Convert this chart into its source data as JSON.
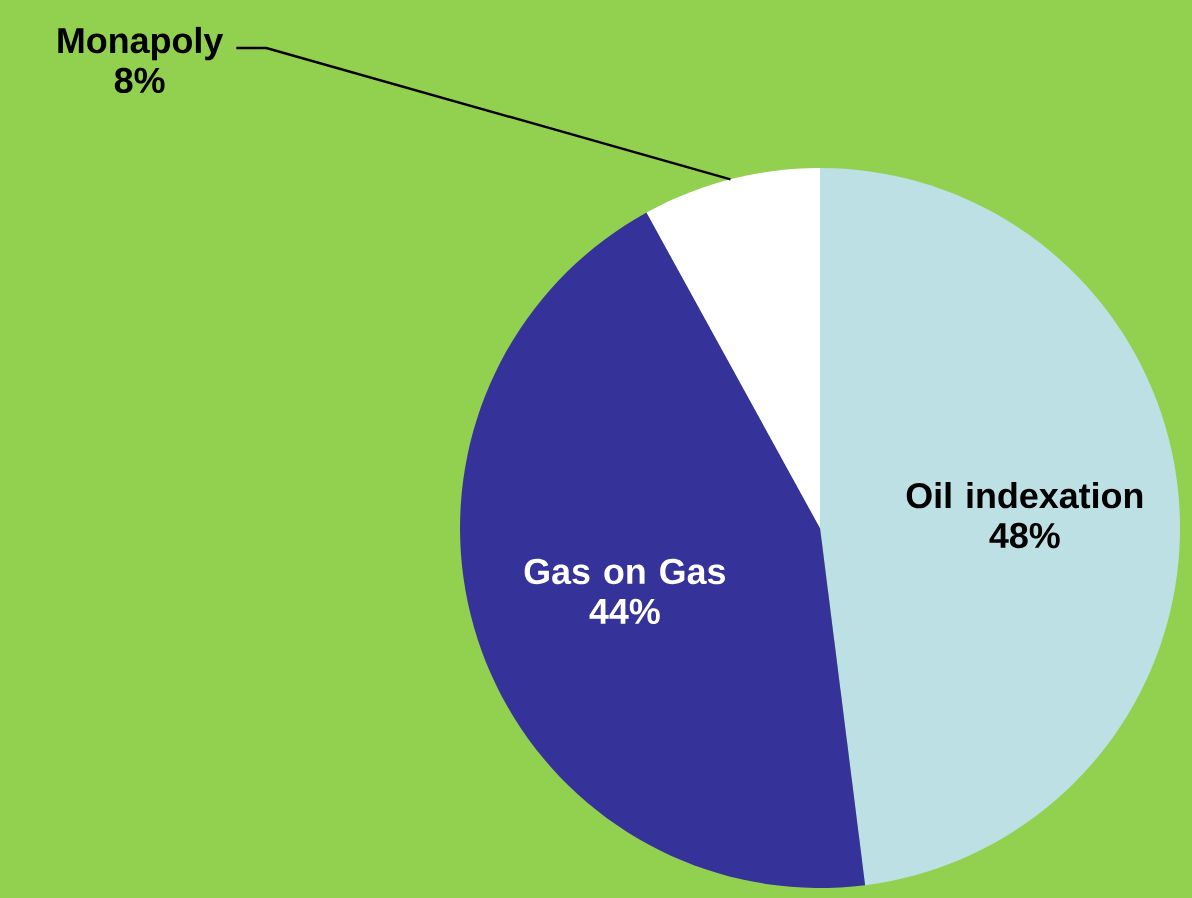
{
  "chart_data": {
    "type": "pie",
    "categories": [
      "Oil indexation",
      "Gas on Gas",
      "Monapoly"
    ],
    "values": [
      48,
      44,
      8
    ],
    "colors": [
      "#bde0e4",
      "#353399",
      "#ffffff"
    ],
    "value_labels": [
      "48%",
      "44%",
      "8%"
    ]
  }
}
